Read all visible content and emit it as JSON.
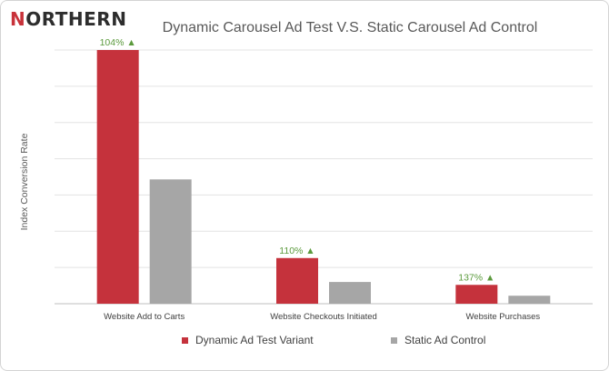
{
  "brand": {
    "logo_lead": "N",
    "logo_rest": "ORTHERN",
    "accent_color": "#c8323a"
  },
  "chart_data": {
    "type": "bar",
    "title": "Dynamic Carousel Ad Test V.S. Static Carousel Ad Control",
    "xlabel": "",
    "ylabel": "Index Conversion Rate",
    "categories": [
      "Website Add to Carts",
      "Website Checkouts Initiated",
      "Website Purchases"
    ],
    "series": [
      {
        "name": "Dynamic Ad Test Variant",
        "color": "#c5323c",
        "values": [
          7.0,
          1.26,
          0.52
        ]
      },
      {
        "name": "Static Ad Control",
        "color": "#a6a6a6",
        "values": [
          3.43,
          0.6,
          0.22
        ]
      }
    ],
    "annotations": [
      "104% ▲",
      "110% ▲",
      "137% ▲"
    ],
    "annotation_color": "#5b9a3c",
    "ylim": [
      0,
      7.0
    ],
    "grid": true,
    "y_tick_labels_visible": false,
    "legend_position": "bottom"
  }
}
